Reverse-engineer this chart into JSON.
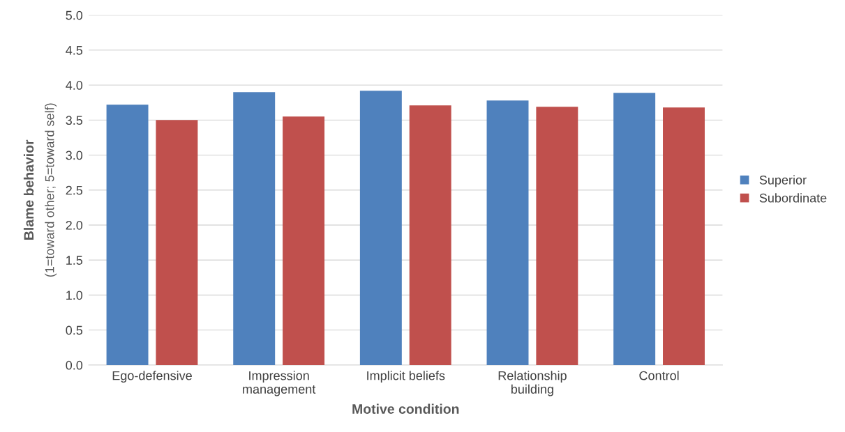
{
  "chart_data": {
    "type": "bar",
    "xlabel": "Motive condition",
    "ylabel": "Blame behavior\n(1=toward other; 5=toward self)",
    "categories": [
      "Ego-defensive",
      "Impression\nmanagement",
      "Implicit beliefs",
      "Relationship\nbuilding",
      "Control"
    ],
    "series": [
      {
        "name": "Superior",
        "color": "#4f81bd",
        "values": [
          3.72,
          3.9,
          3.92,
          3.78,
          3.89
        ]
      },
      {
        "name": "Subordinate",
        "color": "#c0504d",
        "values": [
          3.5,
          3.55,
          3.71,
          3.69,
          3.68
        ]
      }
    ],
    "ylim": [
      0,
      5
    ],
    "yticks": [
      {
        "value": 0,
        "label": "0.0"
      },
      0.5,
      {
        "value": 1,
        "label": "1.0"
      },
      1.5,
      {
        "value": 2,
        "label": "2.0"
      },
      2.5,
      {
        "value": 3,
        "label": "3.0"
      },
      3.5,
      {
        "value": 4,
        "label": "4.0"
      },
      4.5,
      {
        "value": 5,
        "label": "5.0"
      }
    ],
    "grid": "y",
    "legend": "right"
  }
}
